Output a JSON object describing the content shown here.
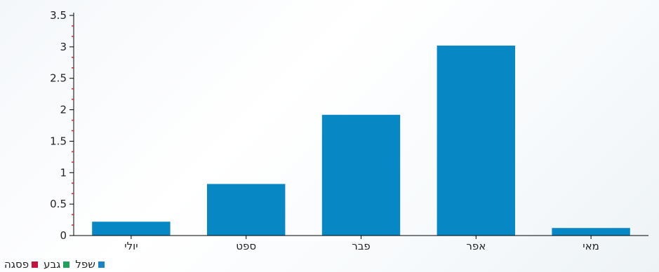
{
  "chart_data": {
    "type": "bar",
    "title": "",
    "xlabel": "",
    "ylabel": "",
    "ylim": [
      0,
      3.5
    ],
    "yticks": [
      "0",
      "0.5",
      "1",
      "1.5",
      "2",
      "2.5",
      "3",
      "3.5"
    ],
    "categories": [
      "יולי",
      "ספט",
      "פבר",
      "אפר",
      "מאי"
    ],
    "series": [
      {
        "values": [
          0.22,
          0.82,
          1.92,
          3.02,
          0.12
        ],
        "color": "#0787c4"
      }
    ],
    "grid": false,
    "axis_color": "#000000",
    "minor_tick_color": "#d9243a"
  },
  "legend": {
    "placement": "bottom-left",
    "items": [
      {
        "label": "שפל",
        "color": "#1a82c7"
      },
      {
        "label": "גבע",
        "color": "#1fa15a"
      },
      {
        "label": "פסגה",
        "color": "#c8103c"
      }
    ]
  }
}
